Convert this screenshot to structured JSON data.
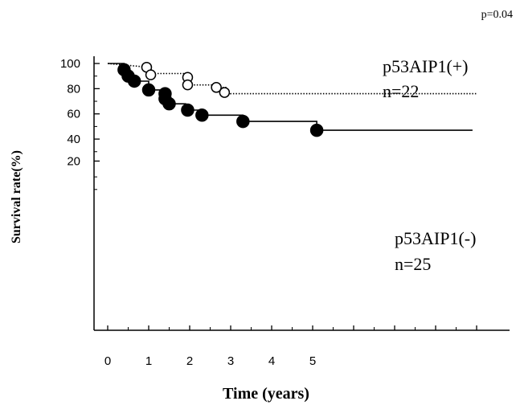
{
  "chart_data": {
    "type": "line",
    "title": "",
    "p_value_label": "p=0.04",
    "xlabel": "Time (years)",
    "ylabel": "Survival rate(%)",
    "xlim": [
      -0.6,
      9.2
    ],
    "ylim": [
      -8,
      104
    ],
    "xticks": [
      0,
      1,
      2,
      3,
      4,
      5
    ],
    "yticks": [
      40,
      60,
      80,
      100
    ],
    "ytick_labels": [
      "40",
      "60",
      "80",
      "100"
    ],
    "ytick_extra": {
      "value": 20,
      "label": "20"
    },
    "y_minor_ticks": [
      0,
      10,
      30,
      50,
      70,
      90
    ],
    "x_extra_ticks": [
      6,
      7,
      8,
      9
    ],
    "series": [
      {
        "label_line1": "p53AIP1(+)",
        "label_line2": "n=22",
        "line_style": "dotted",
        "marker": "open-circle",
        "color": "#000000",
        "steps": [
          [
            0,
            100
          ],
          [
            1.0,
            97
          ],
          [
            1.0,
            92
          ],
          [
            2.0,
            92
          ],
          [
            2.0,
            89
          ],
          [
            2.0,
            83
          ],
          [
            2.7,
            83
          ],
          [
            2.7,
            81
          ],
          [
            2.9,
            81
          ],
          [
            2.9,
            77
          ],
          [
            3.0,
            77
          ],
          [
            3.0,
            76
          ],
          [
            9.0,
            76
          ]
        ],
        "events": [
          [
            0.95,
            97
          ],
          [
            1.05,
            91
          ],
          [
            1.95,
            89
          ],
          [
            1.95,
            83
          ],
          [
            2.65,
            81
          ],
          [
            2.85,
            77
          ]
        ]
      },
      {
        "label_line1": "p53AIP1(-)",
        "label_line2": "n=25",
        "line_style": "solid",
        "marker": "filled-circle",
        "color": "#000000",
        "steps": [
          [
            0,
            100
          ],
          [
            0.4,
            100
          ],
          [
            0.4,
            95
          ],
          [
            0.5,
            95
          ],
          [
            0.5,
            90
          ],
          [
            0.6,
            90
          ],
          [
            0.6,
            86
          ],
          [
            1.0,
            86
          ],
          [
            1.0,
            79
          ],
          [
            1.4,
            79
          ],
          [
            1.4,
            77
          ],
          [
            1.4,
            72
          ],
          [
            1.5,
            72
          ],
          [
            1.5,
            68
          ],
          [
            1.9,
            68
          ],
          [
            1.9,
            63
          ],
          [
            2.2,
            63
          ],
          [
            2.2,
            59
          ],
          [
            3.3,
            59
          ],
          [
            3.3,
            54
          ],
          [
            5.1,
            54
          ],
          [
            5.1,
            47
          ],
          [
            8.9,
            47
          ]
        ],
        "events": [
          [
            0.4,
            95
          ],
          [
            0.5,
            90
          ],
          [
            0.65,
            86
          ],
          [
            1.0,
            79
          ],
          [
            1.4,
            76
          ],
          [
            1.4,
            72
          ],
          [
            1.5,
            68
          ],
          [
            1.95,
            63
          ],
          [
            2.3,
            59
          ],
          [
            3.3,
            54
          ],
          [
            5.1,
            47
          ]
        ]
      }
    ],
    "grid": false,
    "legend": "annotations-right"
  }
}
